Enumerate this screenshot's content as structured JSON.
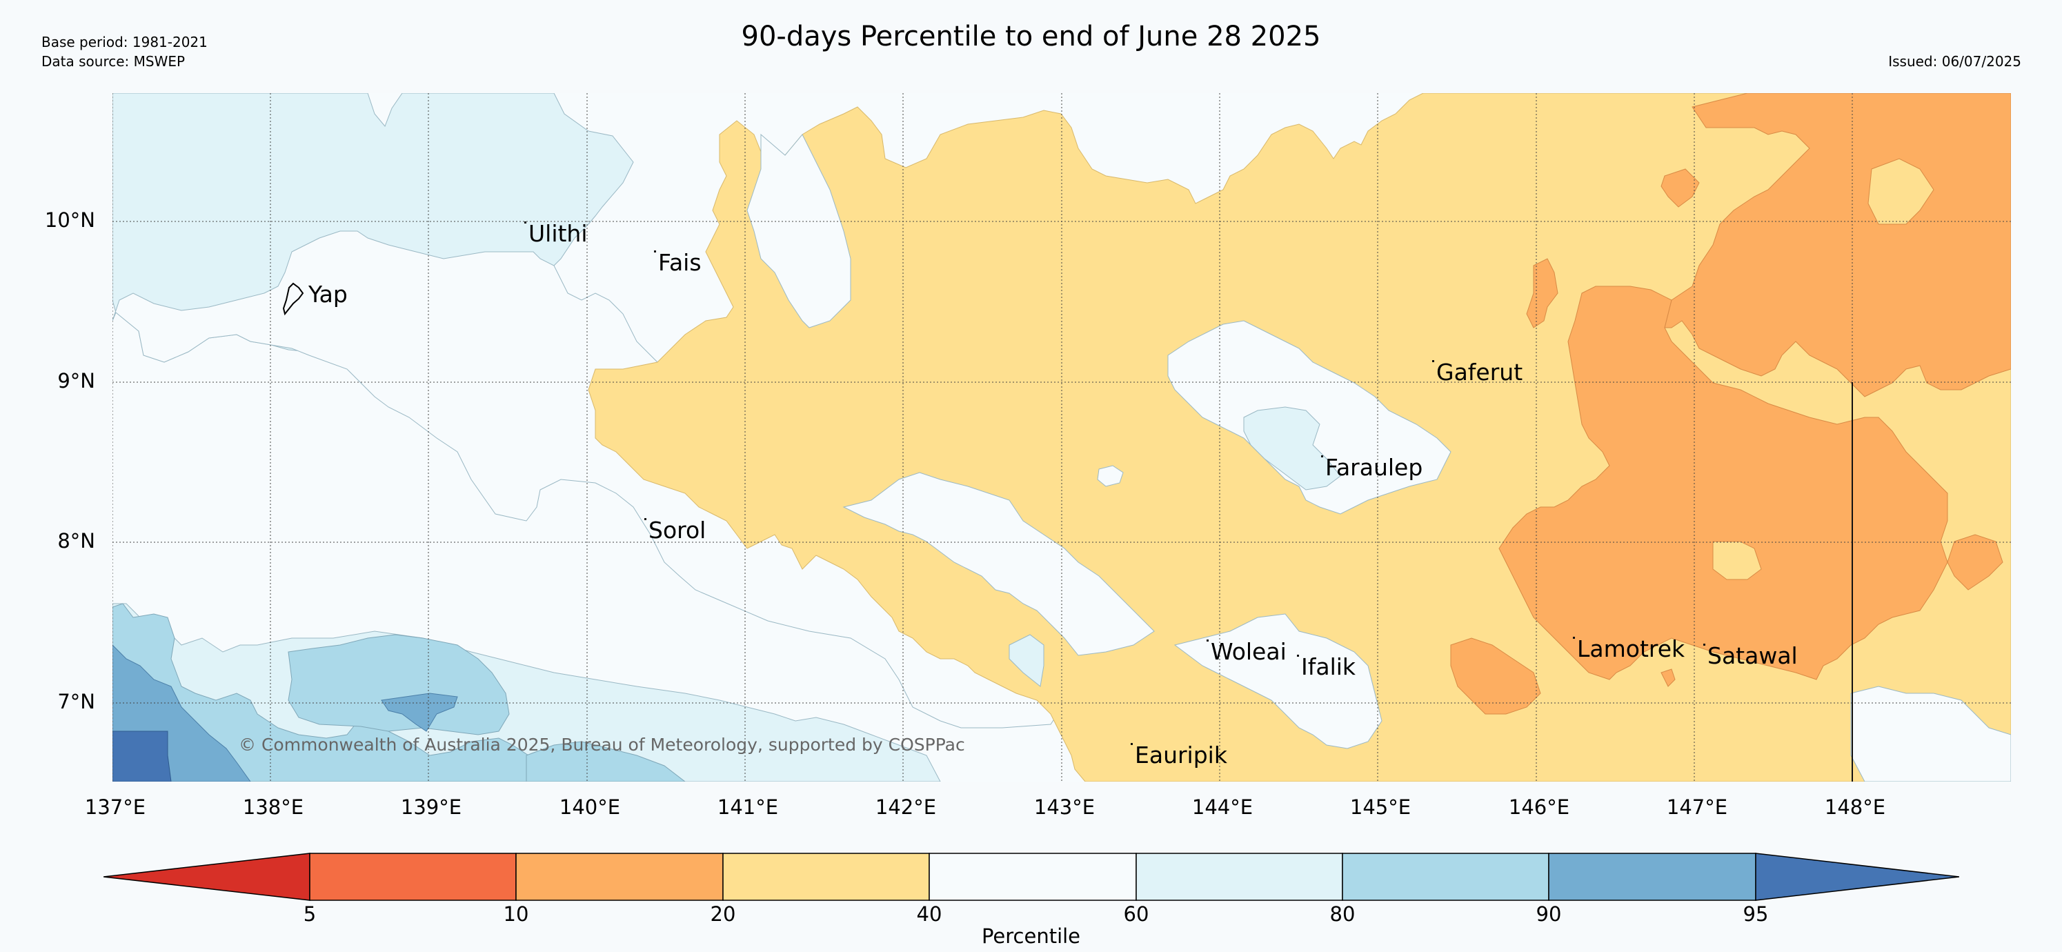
{
  "header": {
    "base_period": "Base period: 1981-2021",
    "data_source": "Data source: MSWEP",
    "title": "90-days Percentile to end of June 28 2025",
    "issued": "Issued: 06/07/2025"
  },
  "map": {
    "latitude_labels": [
      "10°N",
      "9°N",
      "8°N",
      "7°N"
    ],
    "longitude_labels": [
      "137°E",
      "138°E",
      "139°E",
      "140°E",
      "141°E",
      "142°E",
      "143°E",
      "144°E",
      "145°E",
      "146°E",
      "147°E",
      "148°E"
    ],
    "places": [
      {
        "name": "Yap"
      },
      {
        "name": "Ulithi"
      },
      {
        "name": "Fais"
      },
      {
        "name": "Gaferut"
      },
      {
        "name": "Faraulep"
      },
      {
        "name": "Sorol"
      },
      {
        "name": "Woleai"
      },
      {
        "name": "Ifalik"
      },
      {
        "name": "Lamotrek"
      },
      {
        "name": "Satawal"
      },
      {
        "name": "Eauripik"
      }
    ],
    "copyright": "© Commonwealth of Australia 2025, Bureau of Meteorology, supported by COSPPac"
  },
  "colorbar": {
    "label": "Percentile",
    "ticks": [
      "5",
      "10",
      "20",
      "40",
      "60",
      "80",
      "90",
      "95"
    ],
    "colors": {
      "lt5": "#d73027",
      "5_10": "#f46d43",
      "10_20": "#fdae61",
      "20_40": "#fee090",
      "40_60": "#f7fbfd",
      "60_80": "#e0f3f8",
      "80_90": "#abd9e9",
      "90_95": "#74add1",
      "gt95": "#4575b4"
    }
  }
}
